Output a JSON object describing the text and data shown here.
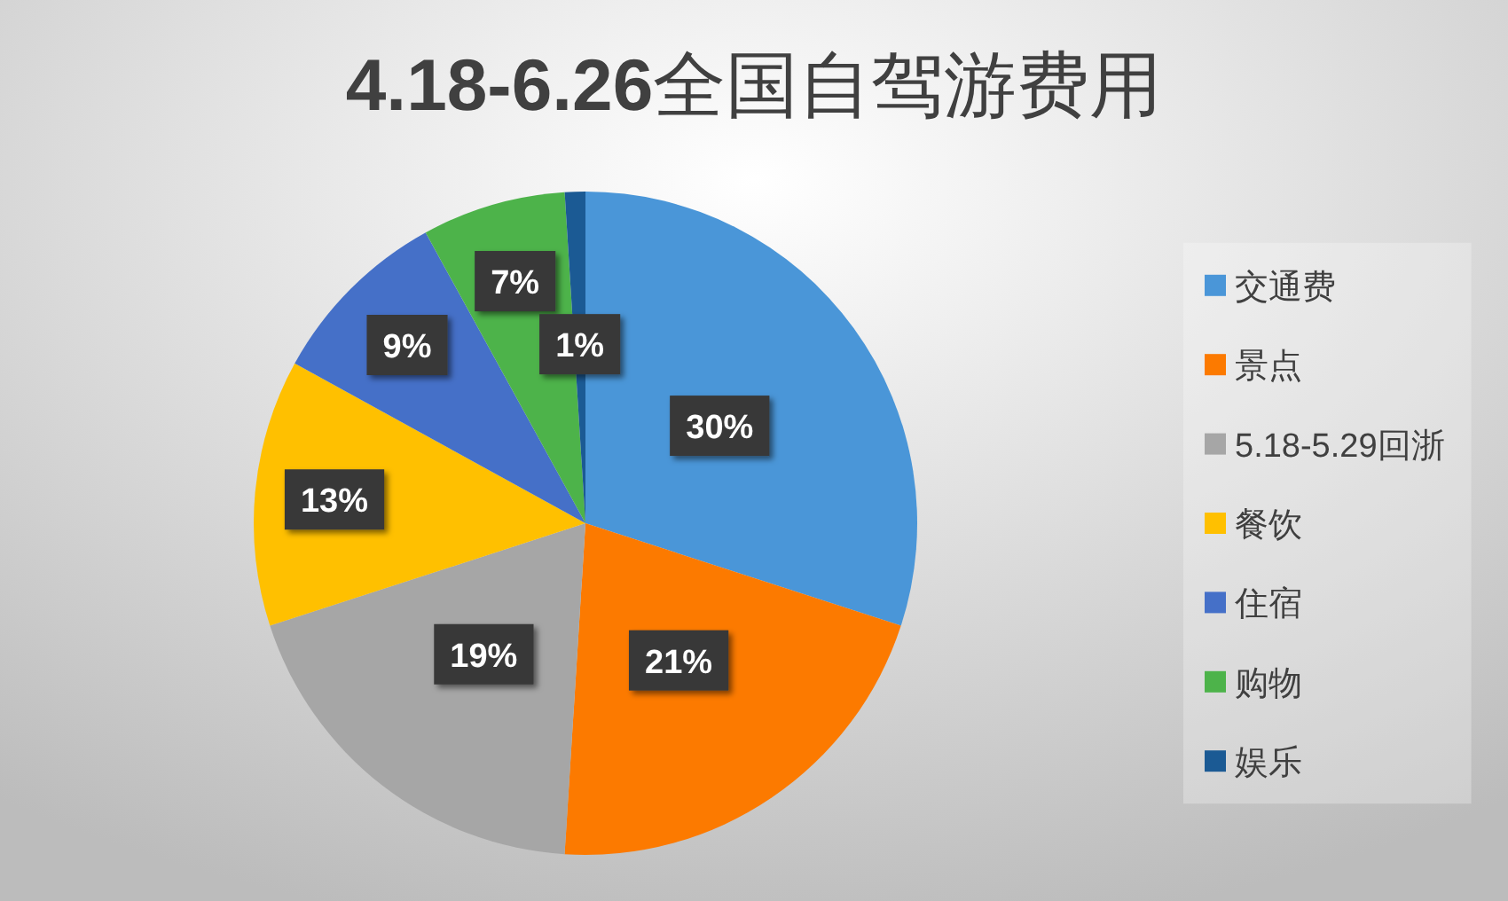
{
  "chart_data": {
    "type": "pie",
    "title": "4.18-6.26全国自驾游费用",
    "categories": [
      "交通费",
      "景点",
      "5.18-5.29回浙",
      "餐饮",
      "住宿",
      "购物",
      "娱乐"
    ],
    "values": [
      30,
      21,
      19,
      13,
      9,
      7,
      1
    ],
    "colors": [
      "#4a96d8",
      "#fc7a00",
      "#a6a6a6",
      "#ffc000",
      "#4570c8",
      "#4db34a",
      "#1b5a94"
    ],
    "value_labels": [
      "30%",
      "21%",
      "19%",
      "13%",
      "9%",
      "7%",
      "1%"
    ],
    "legend": "right"
  }
}
